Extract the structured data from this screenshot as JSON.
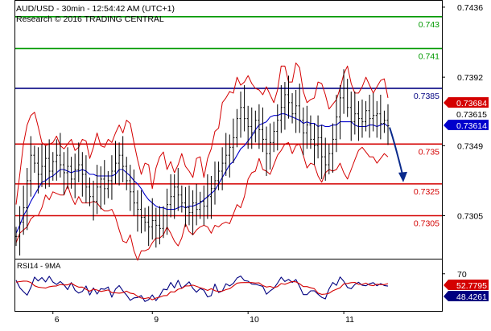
{
  "header": {
    "symbol_line": "AUD/USD - 30min - 12:54:42 AM (UTC+1)",
    "research_line": "Research © 2016 TRADING CENTRAL"
  },
  "colors": {
    "price": "#000000",
    "bollinger": "#d40000",
    "ma": "#0000cc",
    "support_resistance": "#d40000",
    "target": "#009900",
    "pivot": "#000080",
    "arrow": "#0a2a8c",
    "rsi": "#000080",
    "rsi_ma": "#d40000"
  },
  "chart_data": [
    {
      "type": "candlestick",
      "title": "AUD/USD - 30min",
      "x_tick_labels": [
        "6",
        "9",
        "10",
        "11"
      ],
      "y_tick_labels": [
        "0.7436",
        "0.7392",
        "0.7349",
        "0.7305"
      ],
      "ylim": [
        0.7278,
        0.744
      ],
      "grid": false,
      "levels": [
        {
          "label": "0.743",
          "value": 0.743,
          "kind": "target"
        },
        {
          "label": "0.741",
          "value": 0.741,
          "kind": "target"
        },
        {
          "label": "0.7385",
          "value": 0.7385,
          "kind": "pivot"
        },
        {
          "label": "0.735",
          "value": 0.735,
          "kind": "resistance"
        },
        {
          "label": "0.7325",
          "value": 0.7325,
          "kind": "support"
        },
        {
          "label": "0.7305",
          "value": 0.7305,
          "kind": "support"
        }
      ],
      "value_badges": [
        {
          "label": "0.73684",
          "value": 0.73684
        },
        {
          "label": "0.73615",
          "value": 0.73615
        },
        {
          "label": "0.73614",
          "value": 0.73614
        }
      ],
      "series": {
        "close": [
          0.7292,
          0.7301,
          0.731,
          0.7327,
          0.7343,
          0.7338,
          0.7331,
          0.7336,
          0.7341,
          0.7333,
          0.7339,
          0.7343,
          0.7337,
          0.7332,
          0.7336,
          0.7328,
          0.7334,
          0.7337,
          0.7331,
          0.7323,
          0.7317,
          0.7314,
          0.7323,
          0.7328,
          0.7322,
          0.7327,
          0.7333,
          0.7338,
          0.7343,
          0.7336,
          0.7327,
          0.732,
          0.7313,
          0.7309,
          0.7304,
          0.7301,
          0.7298,
          0.7302,
          0.7299,
          0.7297,
          0.7305,
          0.7312,
          0.7317,
          0.7323,
          0.7318,
          0.7313,
          0.731,
          0.7307,
          0.7313,
          0.7309,
          0.7314,
          0.7311,
          0.7317,
          0.7322,
          0.7327,
          0.7333,
          0.7338,
          0.7343,
          0.7348,
          0.7354,
          0.7366,
          0.7373,
          0.7366,
          0.7361,
          0.7357,
          0.7365,
          0.7359,
          0.7353,
          0.7344,
          0.7351,
          0.7358,
          0.7365,
          0.7373,
          0.7381,
          0.7376,
          0.7369,
          0.7374,
          0.7365,
          0.7357,
          0.7362,
          0.7353,
          0.7349,
          0.7354,
          0.7342,
          0.7337,
          0.7344,
          0.7353,
          0.7367,
          0.7379,
          0.7385,
          0.7373,
          0.7364,
          0.7369,
          0.7366,
          0.7364,
          0.7371,
          0.7366,
          0.7368,
          0.7369,
          0.7363,
          0.7365,
          0.73615
        ],
        "upper_band": [
          0.7312,
          0.7331,
          0.735,
          0.7362,
          0.7368,
          0.737,
          0.7361,
          0.7351,
          0.7349,
          0.735,
          0.7351,
          0.7355,
          0.7349,
          0.7347,
          0.735,
          0.7353,
          0.7346,
          0.7348,
          0.7353,
          0.7352,
          0.7341,
          0.7348,
          0.7357,
          0.7349,
          0.7348,
          0.7353,
          0.7351,
          0.7357,
          0.7362,
          0.7357,
          0.7365,
          0.7363,
          0.7351,
          0.734,
          0.7331,
          0.7338,
          0.7337,
          0.7322,
          0.7335,
          0.7342,
          0.7345,
          0.7334,
          0.7339,
          0.7332,
          0.7337,
          0.7344,
          0.7336,
          0.7333,
          0.7329,
          0.7341,
          0.7342,
          0.7329,
          0.7341,
          0.7347,
          0.7358,
          0.736,
          0.7376,
          0.7379,
          0.7383,
          0.7382,
          0.7392,
          0.7387,
          0.7389,
          0.7393,
          0.7388,
          0.7385,
          0.7384,
          0.7381,
          0.7386,
          0.7381,
          0.7376,
          0.7384,
          0.7399,
          0.7399,
          0.7389,
          0.7389,
          0.7401,
          0.7398,
          0.7383,
          0.7376,
          0.7378,
          0.7379,
          0.7389,
          0.7388,
          0.7381,
          0.7372,
          0.7375,
          0.7378,
          0.7385,
          0.7394,
          0.7399,
          0.7388,
          0.7382,
          0.7382,
          0.7386,
          0.7392,
          0.7387,
          0.7382,
          0.7386,
          0.739,
          0.7391,
          0.7379
        ],
        "lower_band": [
          0.7288,
          0.7294,
          0.7296,
          0.7298,
          0.7303,
          0.7305,
          0.7305,
          0.731,
          0.7318,
          0.7315,
          0.732,
          0.7319,
          0.7318,
          0.7318,
          0.7324,
          0.7317,
          0.7312,
          0.7317,
          0.7313,
          0.7313,
          0.7313,
          0.7314,
          0.7313,
          0.731,
          0.7308,
          0.7308,
          0.7309,
          0.7304,
          0.7296,
          0.7289,
          0.7288,
          0.7293,
          0.7283,
          0.7277,
          0.7283,
          0.7283,
          0.7284,
          0.7288,
          0.7291,
          0.7291,
          0.7293,
          0.7298,
          0.7294,
          0.7289,
          0.7286,
          0.7291,
          0.73,
          0.7295,
          0.7293,
          0.7296,
          0.7298,
          0.7299,
          0.7298,
          0.7294,
          0.7299,
          0.7298,
          0.73,
          0.7301,
          0.73,
          0.7306,
          0.7312,
          0.731,
          0.7317,
          0.7328,
          0.7332,
          0.7333,
          0.7341,
          0.7334,
          0.7333,
          0.7331,
          0.7337,
          0.7343,
          0.7346,
          0.735,
          0.7351,
          0.7344,
          0.7349,
          0.735,
          0.7343,
          0.7335,
          0.7338,
          0.7337,
          0.733,
          0.7326,
          0.7332,
          0.7334,
          0.7333,
          0.7334,
          0.7338,
          0.7332,
          0.7328,
          0.7334,
          0.734,
          0.7346,
          0.7348,
          0.7345,
          0.7342,
          0.7342,
          0.7338,
          0.7341,
          0.7344,
          0.7342
        ],
        "moving_average": [
          0.7294,
          0.7299,
          0.7305,
          0.7309,
          0.7314,
          0.7318,
          0.7322,
          0.7326,
          0.7327,
          0.7329,
          0.733,
          0.7332,
          0.7334,
          0.7334,
          0.7333,
          0.7332,
          0.7333,
          0.7333,
          0.7334,
          0.7333,
          0.7331,
          0.7331,
          0.733,
          0.733,
          0.733,
          0.733,
          0.733,
          0.7331,
          0.7334,
          0.7334,
          0.7332,
          0.733,
          0.7327,
          0.7325,
          0.7322,
          0.7318,
          0.7315,
          0.7313,
          0.7311,
          0.731,
          0.731,
          0.7309,
          0.7309,
          0.7309,
          0.731,
          0.7311,
          0.731,
          0.7311,
          0.7311,
          0.7312,
          0.7313,
          0.7315,
          0.7317,
          0.7319,
          0.7321,
          0.7325,
          0.7329,
          0.7333,
          0.7337,
          0.7339,
          0.7343,
          0.7347,
          0.7349,
          0.7352,
          0.7355,
          0.7359,
          0.7362,
          0.7363,
          0.7364,
          0.7367,
          0.7368,
          0.7368,
          0.7369,
          0.7369,
          0.7368,
          0.7367,
          0.7366,
          0.7365,
          0.7363,
          0.7364,
          0.7363,
          0.7363,
          0.7361,
          0.7362,
          0.7361,
          0.7361,
          0.7362,
          0.7362,
          0.7364,
          0.7364,
          0.7364,
          0.7364,
          0.7362,
          0.7361,
          0.7361,
          0.7361,
          0.7362,
          0.7362,
          0.7361,
          0.7362,
          0.7363,
          0.7361
        ]
      }
    },
    {
      "type": "line",
      "title": "RSI14 - 9MA",
      "y_tick_labels": [
        "70"
      ],
      "ylim": [
        5,
        95
      ],
      "value_badges": [
        {
          "label": "52.7795",
          "value": 52.7795
        },
        {
          "label": "48.4261",
          "value": 48.4261
        }
      ],
      "series": [
        {
          "name": "RSI14",
          "values": [
            58.7,
            45.7,
            38.7,
            32.5,
            45.9,
            64.2,
            57.5,
            63.3,
            55.7,
            65.6,
            55.6,
            51.2,
            56.4,
            50.7,
            42.3,
            54.6,
            41.2,
            36.2,
            39.0,
            48.6,
            32.9,
            45.2,
            34.5,
            43.9,
            42.8,
            46.9,
            29.1,
            43.2,
            49.4,
            40.0,
            32.8,
            23.5,
            27.8,
            28.5,
            31.9,
            21.5,
            24.7,
            33.0,
            23.0,
            31.6,
            43.1,
            42.0,
            54.8,
            45.3,
            58.6,
            44.7,
            49.8,
            55.9,
            44.5,
            37.8,
            44.3,
            41.2,
            29.5,
            31.7,
            51.9,
            37.2,
            39.8,
            52.5,
            48.8,
            53.3,
            62.7,
            66.0,
            58.1,
            57.1,
            52.0,
            51.6,
            49.9,
            47.9,
            34.3,
            40.0,
            44.6,
            53.6,
            64.1,
            56.5,
            60.2,
            54.8,
            60.0,
            47.9,
            33.6,
            33.5,
            40.1,
            40.3,
            34.2,
            28.8,
            26.1,
            43.6,
            54.8,
            49.7,
            64.5,
            56.9,
            46.1,
            43.8,
            51.1,
            55.2,
            49.8,
            49.0,
            52.6,
            54.5,
            49.0,
            52.8,
            49.4,
            48.43
          ]
        },
        {
          "name": "9MA",
          "values": [
            55.3,
            56.3,
            57.2,
            57.1,
            54.8,
            49.0,
            46.6,
            45.8,
            44.9,
            47.3,
            48.3,
            48.7,
            51.3,
            50.4,
            50.6,
            53.5,
            49.4,
            46.6,
            46.8,
            42.8,
            39.4,
            43.1,
            41.6,
            39.1,
            40.3,
            41.7,
            37.0,
            36.6,
            36.1,
            36.9,
            39.6,
            36.1,
            34.9,
            30.4,
            27.5,
            26.8,
            28.1,
            24.5,
            27.5,
            29.0,
            31.6,
            32.0,
            38.4,
            38.0,
            42.9,
            44.4,
            48.8,
            48.9,
            50.2,
            48.0,
            45.7,
            43.7,
            40.8,
            43.8,
            40.4,
            38.9,
            39.7,
            42.3,
            43.8,
            48.8,
            53.6,
            54.5,
            54.6,
            54.6,
            54.7,
            53.8,
            54.1,
            49.5,
            46.7,
            47.9,
            45.7,
            47.6,
            52.9,
            51.5,
            54.1,
            56.5,
            55.9,
            52.5,
            47.6,
            47.6,
            45.5,
            43.9,
            36.2,
            34.0,
            34.5,
            35.8,
            40.1,
            42.9,
            45.4,
            52.3,
            53.1,
            54.5,
            54.9,
            51.6,
            51.4,
            53.7,
            50.3,
            49.1,
            51.7,
            51.1,
            51.0,
            52.78
          ]
        }
      ]
    }
  ]
}
